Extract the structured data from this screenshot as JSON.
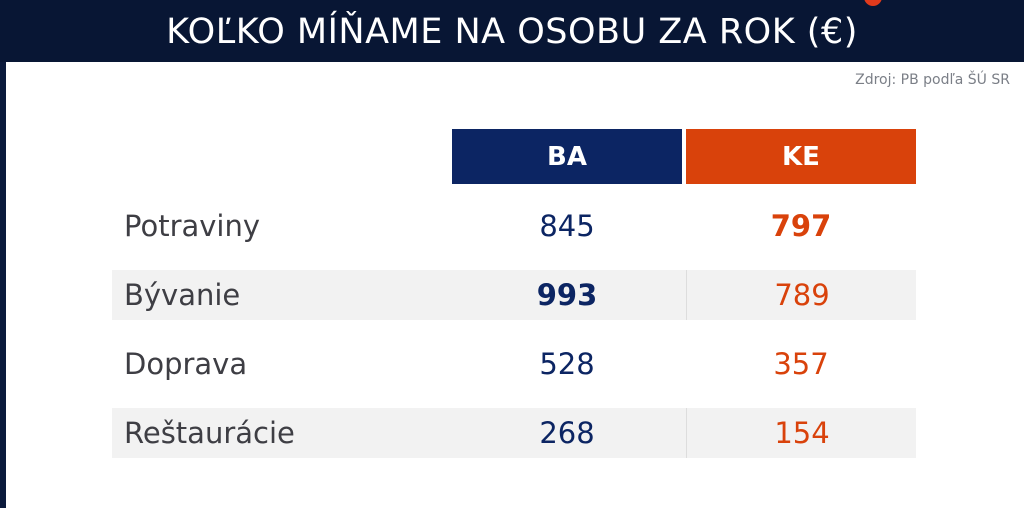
{
  "header": {
    "title": "KOĽKO MÍŇAME NA OSOBU ZA ROK (€)"
  },
  "source_label": "Zdroj: PB podľa ŠÚ SR",
  "table": {
    "columns": [
      "BA",
      "KE"
    ],
    "rows": [
      {
        "label": "Potraviny",
        "ba": "845",
        "ke": "797",
        "highlight": "ke"
      },
      {
        "label": "Bývanie",
        "ba": "993",
        "ke": "789",
        "highlight": "ba"
      },
      {
        "label": "Doprava",
        "ba": "528",
        "ke": "357",
        "highlight": ""
      },
      {
        "label": "Reštaurácie",
        "ba": "268",
        "ke": "154",
        "highlight": ""
      }
    ]
  },
  "colors": {
    "ba": "#0c2563",
    "ke": "#d9420b",
    "title_bg": "#081634"
  }
}
